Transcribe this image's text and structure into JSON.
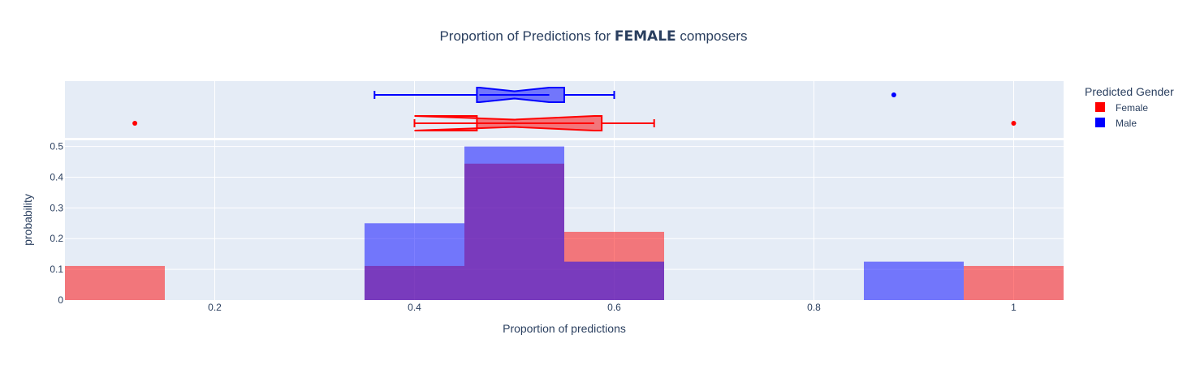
{
  "chart_data": [
    {
      "type": "box",
      "title_prefix": "Proportion of Predictions for ",
      "title_bold": "FEMALE",
      "title_suffix": " composers",
      "notched": true,
      "series": [
        {
          "name": "Male",
          "color": "#0000ff",
          "whisker_low": 0.36,
          "q1": 0.4625,
          "median": 0.5,
          "q3": 0.55,
          "whisker_high": 0.6,
          "notch_low": 0.465,
          "notch_high": 0.535,
          "outliers": [
            0.88
          ]
        },
        {
          "name": "Female",
          "color": "#ff0000",
          "whisker_low": 0.4,
          "q1": 0.4625,
          "median": 0.5,
          "q3": 0.5875,
          "whisker_high": 0.64,
          "notch_low": 0.4,
          "notch_high": 0.58,
          "outliers": [
            0.12,
            1.0
          ]
        }
      ]
    },
    {
      "type": "histogram",
      "barmode": "overlay",
      "histnorm": "probability",
      "xlabel": "Proportion of predictions",
      "ylabel": "probability",
      "xlim": [
        0.05,
        1.05
      ],
      "ylim": [
        0,
        0.52
      ],
      "xticks": [
        0.2,
        0.4,
        0.6,
        0.8,
        1
      ],
      "xtick_labels": [
        "0.2",
        "0.4",
        "0.6",
        "0.8",
        "1"
      ],
      "yticks": [
        0,
        0.1,
        0.2,
        0.3,
        0.4,
        0.5
      ],
      "ytick_labels": [
        "0",
        "0.1",
        "0.2",
        "0.3",
        "0.4",
        "0.5"
      ],
      "series": [
        {
          "name": "Female",
          "color": "#ff0000",
          "bins": [
            {
              "x0": 0.05,
              "x1": 0.15,
              "y": 0.111
            },
            {
              "x0": 0.35,
              "x1": 0.45,
              "y": 0.111
            },
            {
              "x0": 0.45,
              "x1": 0.55,
              "y": 0.444
            },
            {
              "x0": 0.55,
              "x1": 0.65,
              "y": 0.222
            },
            {
              "x0": 0.95,
              "x1": 1.05,
              "y": 0.111
            }
          ]
        },
        {
          "name": "Male",
          "color": "#0000ff",
          "bins": [
            {
              "x0": 0.35,
              "x1": 0.45,
              "y": 0.25
            },
            {
              "x0": 0.45,
              "x1": 0.55,
              "y": 0.5
            },
            {
              "x0": 0.55,
              "x1": 0.65,
              "y": 0.125
            },
            {
              "x0": 0.85,
              "x1": 0.95,
              "y": 0.125
            }
          ]
        }
      ]
    }
  ],
  "legend": {
    "title": "Predicted Gender",
    "placement": "right",
    "items": [
      {
        "label": "Female",
        "color": "#ff0000"
      },
      {
        "label": "Male",
        "color": "#0000ff"
      }
    ]
  },
  "colors": {
    "plot_background": "#e5ecf6",
    "grid": "#ffffff",
    "text": "#2a3f5f"
  }
}
